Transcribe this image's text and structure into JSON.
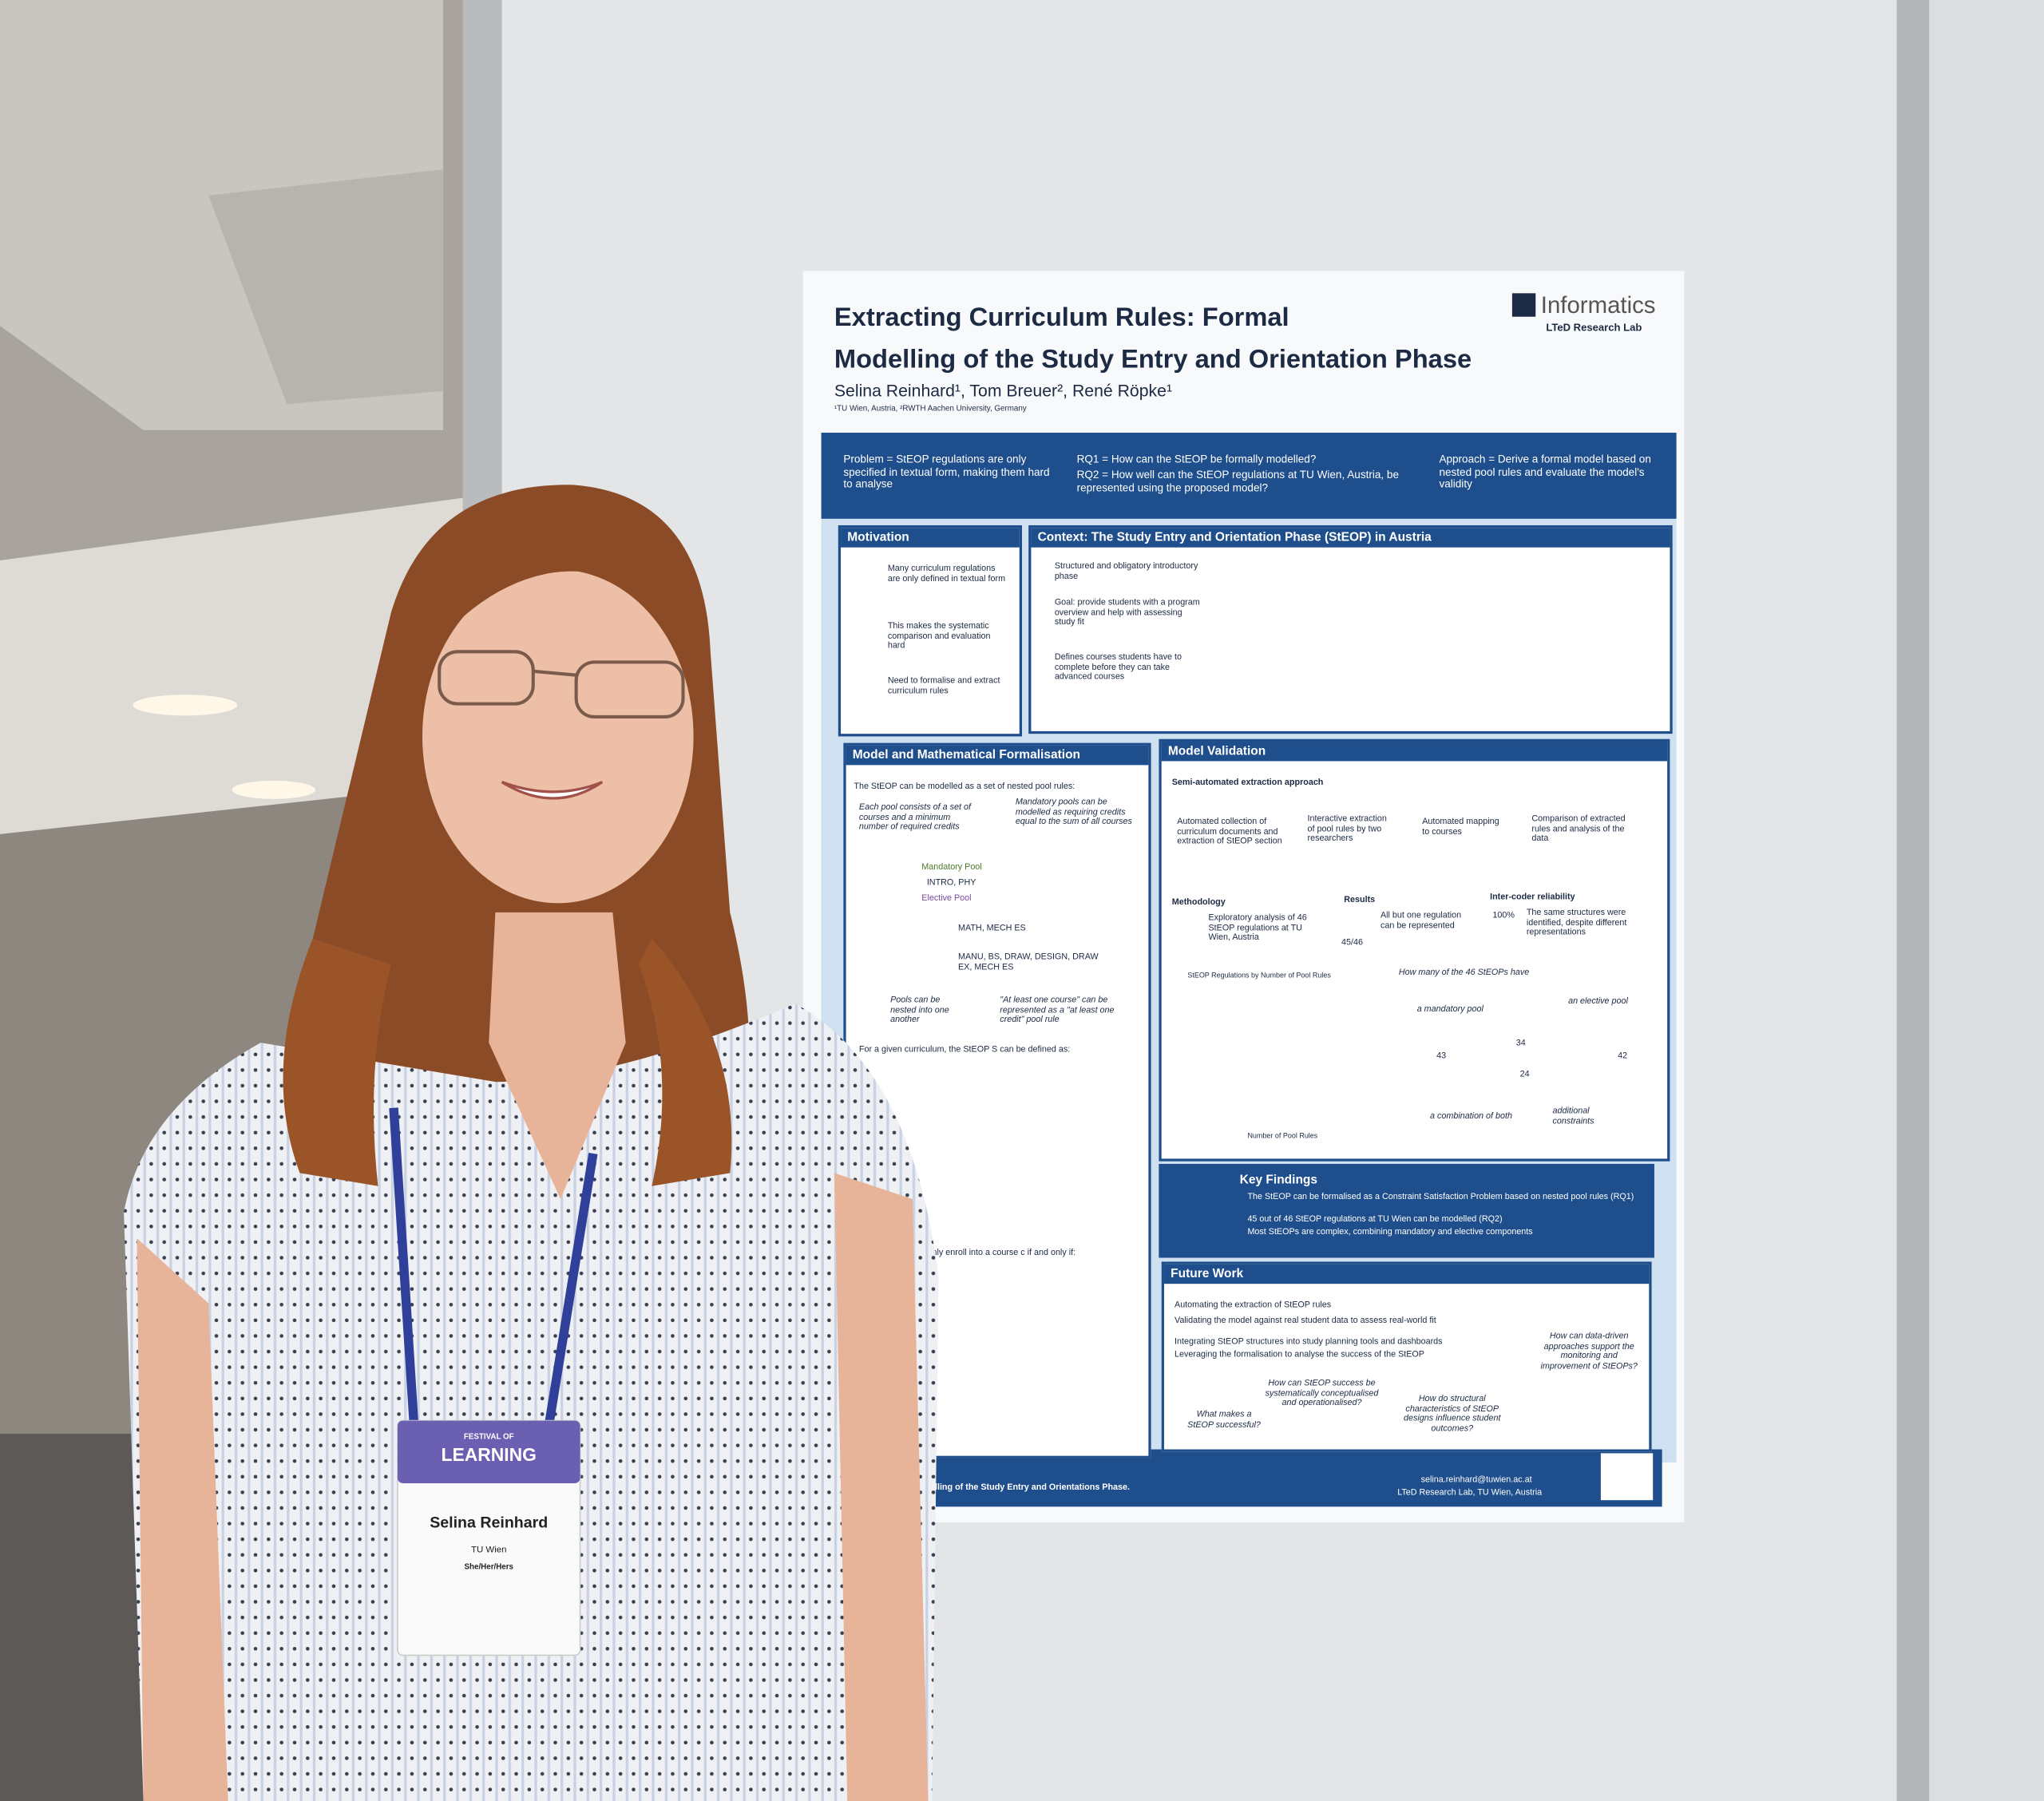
{
  "poster": {
    "title_line_1": "Extracting Curriculum Rules: Formal",
    "title_line_2": "Modelling of the Study Entry and Orientation Phase",
    "authors": "Selina Reinhard¹, Tom Breuer², René Röpke¹",
    "affiliation": "¹TU Wien, Austria, ²RWTH Aachen University, Germany",
    "logo": "Informatics",
    "lab": "LTeD Research Lab",
    "problem": "Problem = StEOP regulations are only specified in textual form, making them hard to analyse",
    "rq1": "RQ1 = How can the StEOP be formally modelled?",
    "rq2": "RQ2 = How well can the StEOP regulations at TU Wien, Austria, be represented using the proposed model?",
    "approach": "Approach = Derive a formal model based on nested pool rules and evaluate the model's validity",
    "motivation": {
      "heading": "Motivation",
      "items": [
        "Many curriculum regulations are only defined in textual form",
        "This makes the systematic comparison and evaluation hard",
        "Need to formalise and extract curriculum rules"
      ]
    },
    "context": {
      "heading": "Context: The Study Entry and Orientation Phase (StEOP) in Austria",
      "items": [
        "Structured and obligatory introductory phase",
        "Goal: provide students with a program overview and help with assessing study fit",
        "Defines courses students have to complete before they can take advanced courses"
      ]
    },
    "model": {
      "heading": "Model and Mathematical Formalisation",
      "intro": "The StEOP can be modelled as a set of nested pool rules:",
      "note_1": "Each pool consists of a set of courses and a minimum number of required credits",
      "note_2": "Mandatory pools can be modelled as requiring credits equal to the sum of all courses",
      "note_3": "Pools can be nested into one another",
      "note_4": "\"At least one course\" can be represented as a \"at least one credit\" pool rule",
      "pool_1": "Mandatory Pool",
      "pool_2": "Elective Pool",
      "course_1": "INTRO, PHY",
      "course_2": "MATH, MECH ES",
      "course_3": "MANU, BS, DRAW, DESIGN, DRAW EX, MECH ES",
      "definition": "For a given curriculum, the StEOP S can be defined as:",
      "enroll": "can only enroll into a course c if and only if:"
    },
    "validation": {
      "heading": "Model Validation",
      "subheading": "Semi-automated extraction approach",
      "steps": [
        "Automated collection of curriculum documents and extraction of StEOP section",
        "Interactive extraction of pool rules by two researchers",
        "Automated mapping to courses",
        "Comparison of extracted rules and analysis of the data"
      ],
      "methodology": "Methodology",
      "methodology_text": "Exploratory analysis of 46 StEOP regulations at TU Wien, Austria",
      "results": "Results",
      "results_text": "All but one regulation can be represented",
      "results_value": "45/46",
      "reliability": "Inter-coder reliability",
      "reliability_value": "100%",
      "reliability_text": "The same structures were identified, despite different representations",
      "chart_title": "StEOP Regulations by Number of Pool Rules",
      "chart_x_label": "Number of Pool Rules",
      "venn_question": "How many of the 46 StEOPs have",
      "venn_labels": [
        "a mandatory pool",
        "an elective pool",
        "a combination of both",
        "additional constraints"
      ],
      "venn_numbers": [
        "43",
        "34",
        "24",
        "42"
      ]
    },
    "key_findings": {
      "heading": "Key Findings",
      "items": [
        "The StEOP can be formalised as a Constraint Satisfaction Problem based on nested pool rules (RQ1)",
        "45 out of 46 StEOP regulations at TU Wien can be modelled (RQ2)",
        "Most StEOPs are complex, combining mandatory and elective components"
      ]
    },
    "future_work": {
      "heading": "Future Work",
      "items": [
        "Automating the extraction of StEOP rules",
        "Validating the model against real student data to assess real-world fit",
        "Integrating StEOP structures into study planning tools and dashboards",
        "Leveraging the formalisation to analyse the success of the StEOP"
      ],
      "questions": [
        "How can StEOP success be systematically conceptualised and operationalised?",
        "What makes a StEOP successful?",
        "How do structural characteristics of StEOP designs influence student outcomes?",
        "How can data-driven approaches support the monitoring and improvement of StEOPs?"
      ]
    },
    "footer_citation": "Modelling of the Study Entry and Orientations Phase.",
    "footer_email": "selina.reinhard@tuwien.ac.at",
    "footer_lab": "LTeD Research Lab, TU Wien, Austria"
  },
  "badge": {
    "event_line_1": "FESTIVAL OF",
    "event_line_2": "LEARNING",
    "name": "Selina Reinhard",
    "organisation": "TU Wien",
    "pronouns": "She/Her/Hers"
  }
}
